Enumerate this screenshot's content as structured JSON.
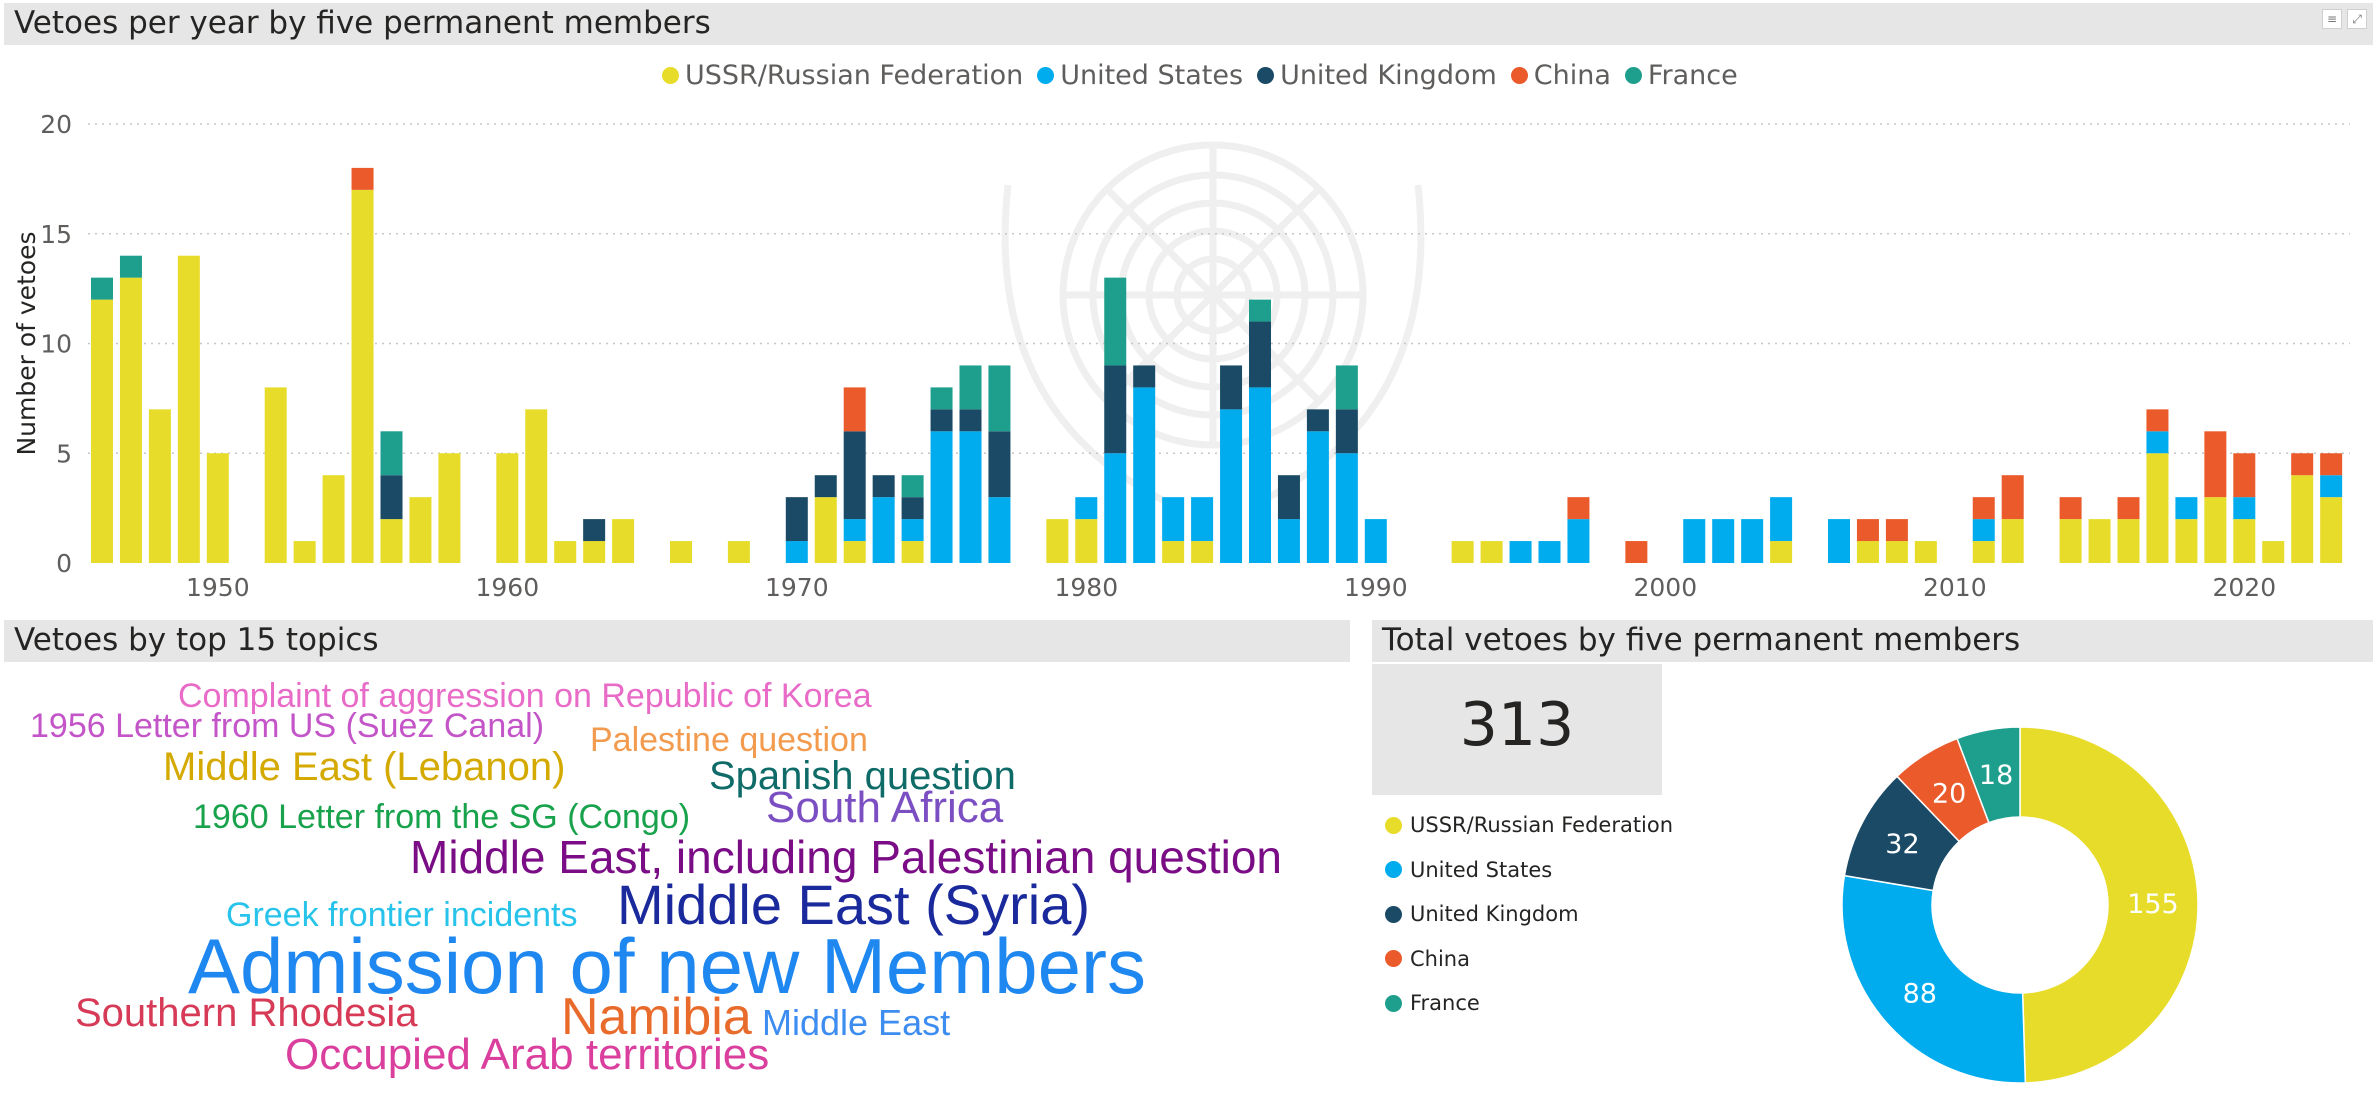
{
  "panels": {
    "top_title": "Vetoes per year by five permanent members",
    "topics_title": "Vetoes by top 15 topics",
    "total_title": "Total vetoes by five permanent members"
  },
  "header_icons": [
    "filter-icon",
    "focus-mode-icon"
  ],
  "legend": [
    {
      "label": "USSR/Russian Federation",
      "color": "#E8DC2B"
    },
    {
      "label": "United States",
      "color": "#00ACEE"
    },
    {
      "label": "United Kingdom",
      "color": "#1A4A66"
    },
    {
      "label": "China",
      "color": "#EA5A2B"
    },
    {
      "label": "France",
      "color": "#1E9E8C"
    }
  ],
  "chart_data": [
    {
      "type": "bar",
      "stacked": true,
      "ylabel": "Number of vetoes",
      "xlabel": "",
      "ylim": [
        0,
        20
      ],
      "yticks": [
        0,
        5,
        10,
        15,
        20
      ],
      "xticks": [
        1950,
        1960,
        1970,
        1980,
        1990,
        2000,
        2010,
        2020
      ],
      "grid": "horizontal dotted",
      "legend_position": "top-center",
      "series": [
        {
          "name": "USSR/Russian Federation",
          "color": "#E8DC2B"
        },
        {
          "name": "United States",
          "color": "#00ACEE"
        },
        {
          "name": "United Kingdom",
          "color": "#1A4A66"
        },
        {
          "name": "China",
          "color": "#EA5A2B"
        },
        {
          "name": "France",
          "color": "#1E9E8C"
        }
      ],
      "years": [
        {
          "x": 1946,
          "values": [
            12,
            0,
            0,
            0,
            1
          ]
        },
        {
          "x": 1947,
          "values": [
            13,
            0,
            0,
            0,
            1
          ]
        },
        {
          "x": 1948,
          "values": [
            7,
            0,
            0,
            0,
            0
          ]
        },
        {
          "x": 1949,
          "values": [
            14,
            0,
            0,
            0,
            0
          ]
        },
        {
          "x": 1950,
          "values": [
            5,
            0,
            0,
            0,
            0
          ]
        },
        {
          "x": 1952,
          "values": [
            8,
            0,
            0,
            0,
            0
          ]
        },
        {
          "x": 1953,
          "values": [
            1,
            0,
            0,
            0,
            0
          ]
        },
        {
          "x": 1954,
          "values": [
            4,
            0,
            0,
            0,
            0
          ]
        },
        {
          "x": 1955,
          "values": [
            17,
            0,
            0,
            1,
            0
          ]
        },
        {
          "x": 1956,
          "values": [
            2,
            0,
            2,
            0,
            2
          ]
        },
        {
          "x": 1957,
          "values": [
            3,
            0,
            0,
            0,
            0
          ]
        },
        {
          "x": 1958,
          "values": [
            5,
            0,
            0,
            0,
            0
          ]
        },
        {
          "x": 1960,
          "values": [
            5,
            0,
            0,
            0,
            0
          ]
        },
        {
          "x": 1961,
          "values": [
            7,
            0,
            0,
            0,
            0
          ]
        },
        {
          "x": 1962,
          "values": [
            1,
            0,
            0,
            0,
            0
          ]
        },
        {
          "x": 1963,
          "values": [
            1,
            0,
            1,
            0,
            0
          ]
        },
        {
          "x": 1964,
          "values": [
            2,
            0,
            0,
            0,
            0
          ]
        },
        {
          "x": 1966,
          "values": [
            1,
            0,
            0,
            0,
            0
          ]
        },
        {
          "x": 1968,
          "values": [
            1,
            0,
            0,
            0,
            0
          ]
        },
        {
          "x": 1970,
          "values": [
            0,
            1,
            2,
            0,
            0
          ]
        },
        {
          "x": 1971,
          "values": [
            3,
            0,
            1,
            0,
            0
          ]
        },
        {
          "x": 1972,
          "values": [
            1,
            1,
            4,
            2,
            0
          ]
        },
        {
          "x": 1973,
          "values": [
            0,
            3,
            1,
            0,
            0
          ]
        },
        {
          "x": 1974,
          "values": [
            1,
            1,
            1,
            0,
            1
          ]
        },
        {
          "x": 1975,
          "values": [
            0,
            6,
            1,
            0,
            1
          ]
        },
        {
          "x": 1976,
          "values": [
            0,
            6,
            1,
            0,
            2
          ]
        },
        {
          "x": 1977,
          "values": [
            0,
            3,
            3,
            0,
            3
          ]
        },
        {
          "x": 1979,
          "values": [
            2,
            0,
            0,
            0,
            0
          ]
        },
        {
          "x": 1980,
          "values": [
            2,
            1,
            0,
            0,
            0
          ]
        },
        {
          "x": 1981,
          "values": [
            0,
            5,
            4,
            0,
            4
          ]
        },
        {
          "x": 1982,
          "values": [
            0,
            8,
            1,
            0,
            0
          ]
        },
        {
          "x": 1983,
          "values": [
            1,
            2,
            0,
            0,
            0
          ]
        },
        {
          "x": 1984,
          "values": [
            1,
            2,
            0,
            0,
            0
          ]
        },
        {
          "x": 1985,
          "values": [
            0,
            7,
            2,
            0,
            0
          ]
        },
        {
          "x": 1986,
          "values": [
            0,
            8,
            3,
            0,
            1
          ]
        },
        {
          "x": 1987,
          "values": [
            0,
            2,
            2,
            0,
            0
          ]
        },
        {
          "x": 1988,
          "values": [
            0,
            6,
            1,
            0,
            0
          ]
        },
        {
          "x": 1989,
          "values": [
            0,
            5,
            2,
            0,
            2
          ]
        },
        {
          "x": 1990,
          "values": [
            0,
            2,
            0,
            0,
            0
          ]
        },
        {
          "x": 1993,
          "values": [
            1,
            0,
            0,
            0,
            0
          ]
        },
        {
          "x": 1994,
          "values": [
            1,
            0,
            0,
            0,
            0
          ]
        },
        {
          "x": 1995,
          "values": [
            0,
            1,
            0,
            0,
            0
          ]
        },
        {
          "x": 1996,
          "values": [
            0,
            1,
            0,
            0,
            0
          ]
        },
        {
          "x": 1997,
          "values": [
            0,
            2,
            0,
            1,
            0
          ]
        },
        {
          "x": 1999,
          "values": [
            0,
            0,
            0,
            1,
            0
          ]
        },
        {
          "x": 2001,
          "values": [
            0,
            2,
            0,
            0,
            0
          ]
        },
        {
          "x": 2002,
          "values": [
            0,
            2,
            0,
            0,
            0
          ]
        },
        {
          "x": 2003,
          "values": [
            0,
            2,
            0,
            0,
            0
          ]
        },
        {
          "x": 2004,
          "values": [
            1,
            2,
            0,
            0,
            0
          ]
        },
        {
          "x": 2006,
          "values": [
            0,
            2,
            0,
            0,
            0
          ]
        },
        {
          "x": 2007,
          "values": [
            1,
            0,
            0,
            1,
            0
          ]
        },
        {
          "x": 2008,
          "values": [
            1,
            0,
            0,
            1,
            0
          ]
        },
        {
          "x": 2009,
          "values": [
            1,
            0,
            0,
            0,
            0
          ]
        },
        {
          "x": 2011,
          "values": [
            1,
            1,
            0,
            1,
            0
          ]
        },
        {
          "x": 2012,
          "values": [
            2,
            0,
            0,
            2,
            0
          ]
        },
        {
          "x": 2014,
          "values": [
            2,
            0,
            0,
            1,
            0
          ]
        },
        {
          "x": 2015,
          "values": [
            2,
            0,
            0,
            0,
            0
          ]
        },
        {
          "x": 2016,
          "values": [
            2,
            0,
            0,
            1,
            0
          ]
        },
        {
          "x": 2017,
          "values": [
            5,
            1,
            0,
            1,
            0
          ]
        },
        {
          "x": 2018,
          "values": [
            2,
            1,
            0,
            0,
            0
          ]
        },
        {
          "x": 2019,
          "values": [
            3,
            0,
            0,
            3,
            0
          ]
        },
        {
          "x": 2020,
          "values": [
            2,
            1,
            0,
            2,
            0
          ]
        },
        {
          "x": 2021,
          "values": [
            1,
            0,
            0,
            0,
            0
          ]
        },
        {
          "x": 2022,
          "values": [
            4,
            0,
            0,
            1,
            0
          ]
        },
        {
          "x": 2023,
          "values": [
            3,
            1,
            0,
            1,
            0
          ]
        }
      ]
    },
    {
      "type": "pie",
      "donut": true,
      "labels": [
        "USSR/Russian Federation",
        "United States",
        "United Kingdom",
        "China",
        "France"
      ],
      "values": [
        155,
        88,
        32,
        20,
        18
      ],
      "colors": [
        "#E8DC2B",
        "#00ACEE",
        "#1A4A66",
        "#EA5A2B",
        "#1E9E8C"
      ],
      "legend_position": "left"
    }
  ],
  "total_card": {
    "value": "313"
  },
  "word_cloud": [
    {
      "text": "Complaint of aggression on Republic of Korea",
      "color": "#E86BC8"
    },
    {
      "text": "1956 Letter from US (Suez Canal)",
      "color": "#C455C9"
    },
    {
      "text": "Palestine question",
      "color": "#F29B4E"
    },
    {
      "text": "Middle East (Lebanon)",
      "color": "#D4A900"
    },
    {
      "text": "Spanish question",
      "color": "#0F6B68"
    },
    {
      "text": "1960 Letter from the SG (Congo)",
      "color": "#17A24B"
    },
    {
      "text": "South Africa",
      "color": "#7B4FC2"
    },
    {
      "text": "Middle East, including Palestinian question",
      "color": "#7A0C86"
    },
    {
      "text": "Greek frontier incidents",
      "color": "#28C3EA"
    },
    {
      "text": "Middle East (Syria)",
      "color": "#1A2A9C"
    },
    {
      "text": "Admission of new Members",
      "color": "#1E88F0"
    },
    {
      "text": "Southern Rhodesia",
      "color": "#D63A56"
    },
    {
      "text": "Namibia",
      "color": "#E86B2B"
    },
    {
      "text": "Middle East",
      "color": "#3D8CF0"
    },
    {
      "text": "Occupied Arab territories",
      "color": "#DA3F9E"
    }
  ]
}
